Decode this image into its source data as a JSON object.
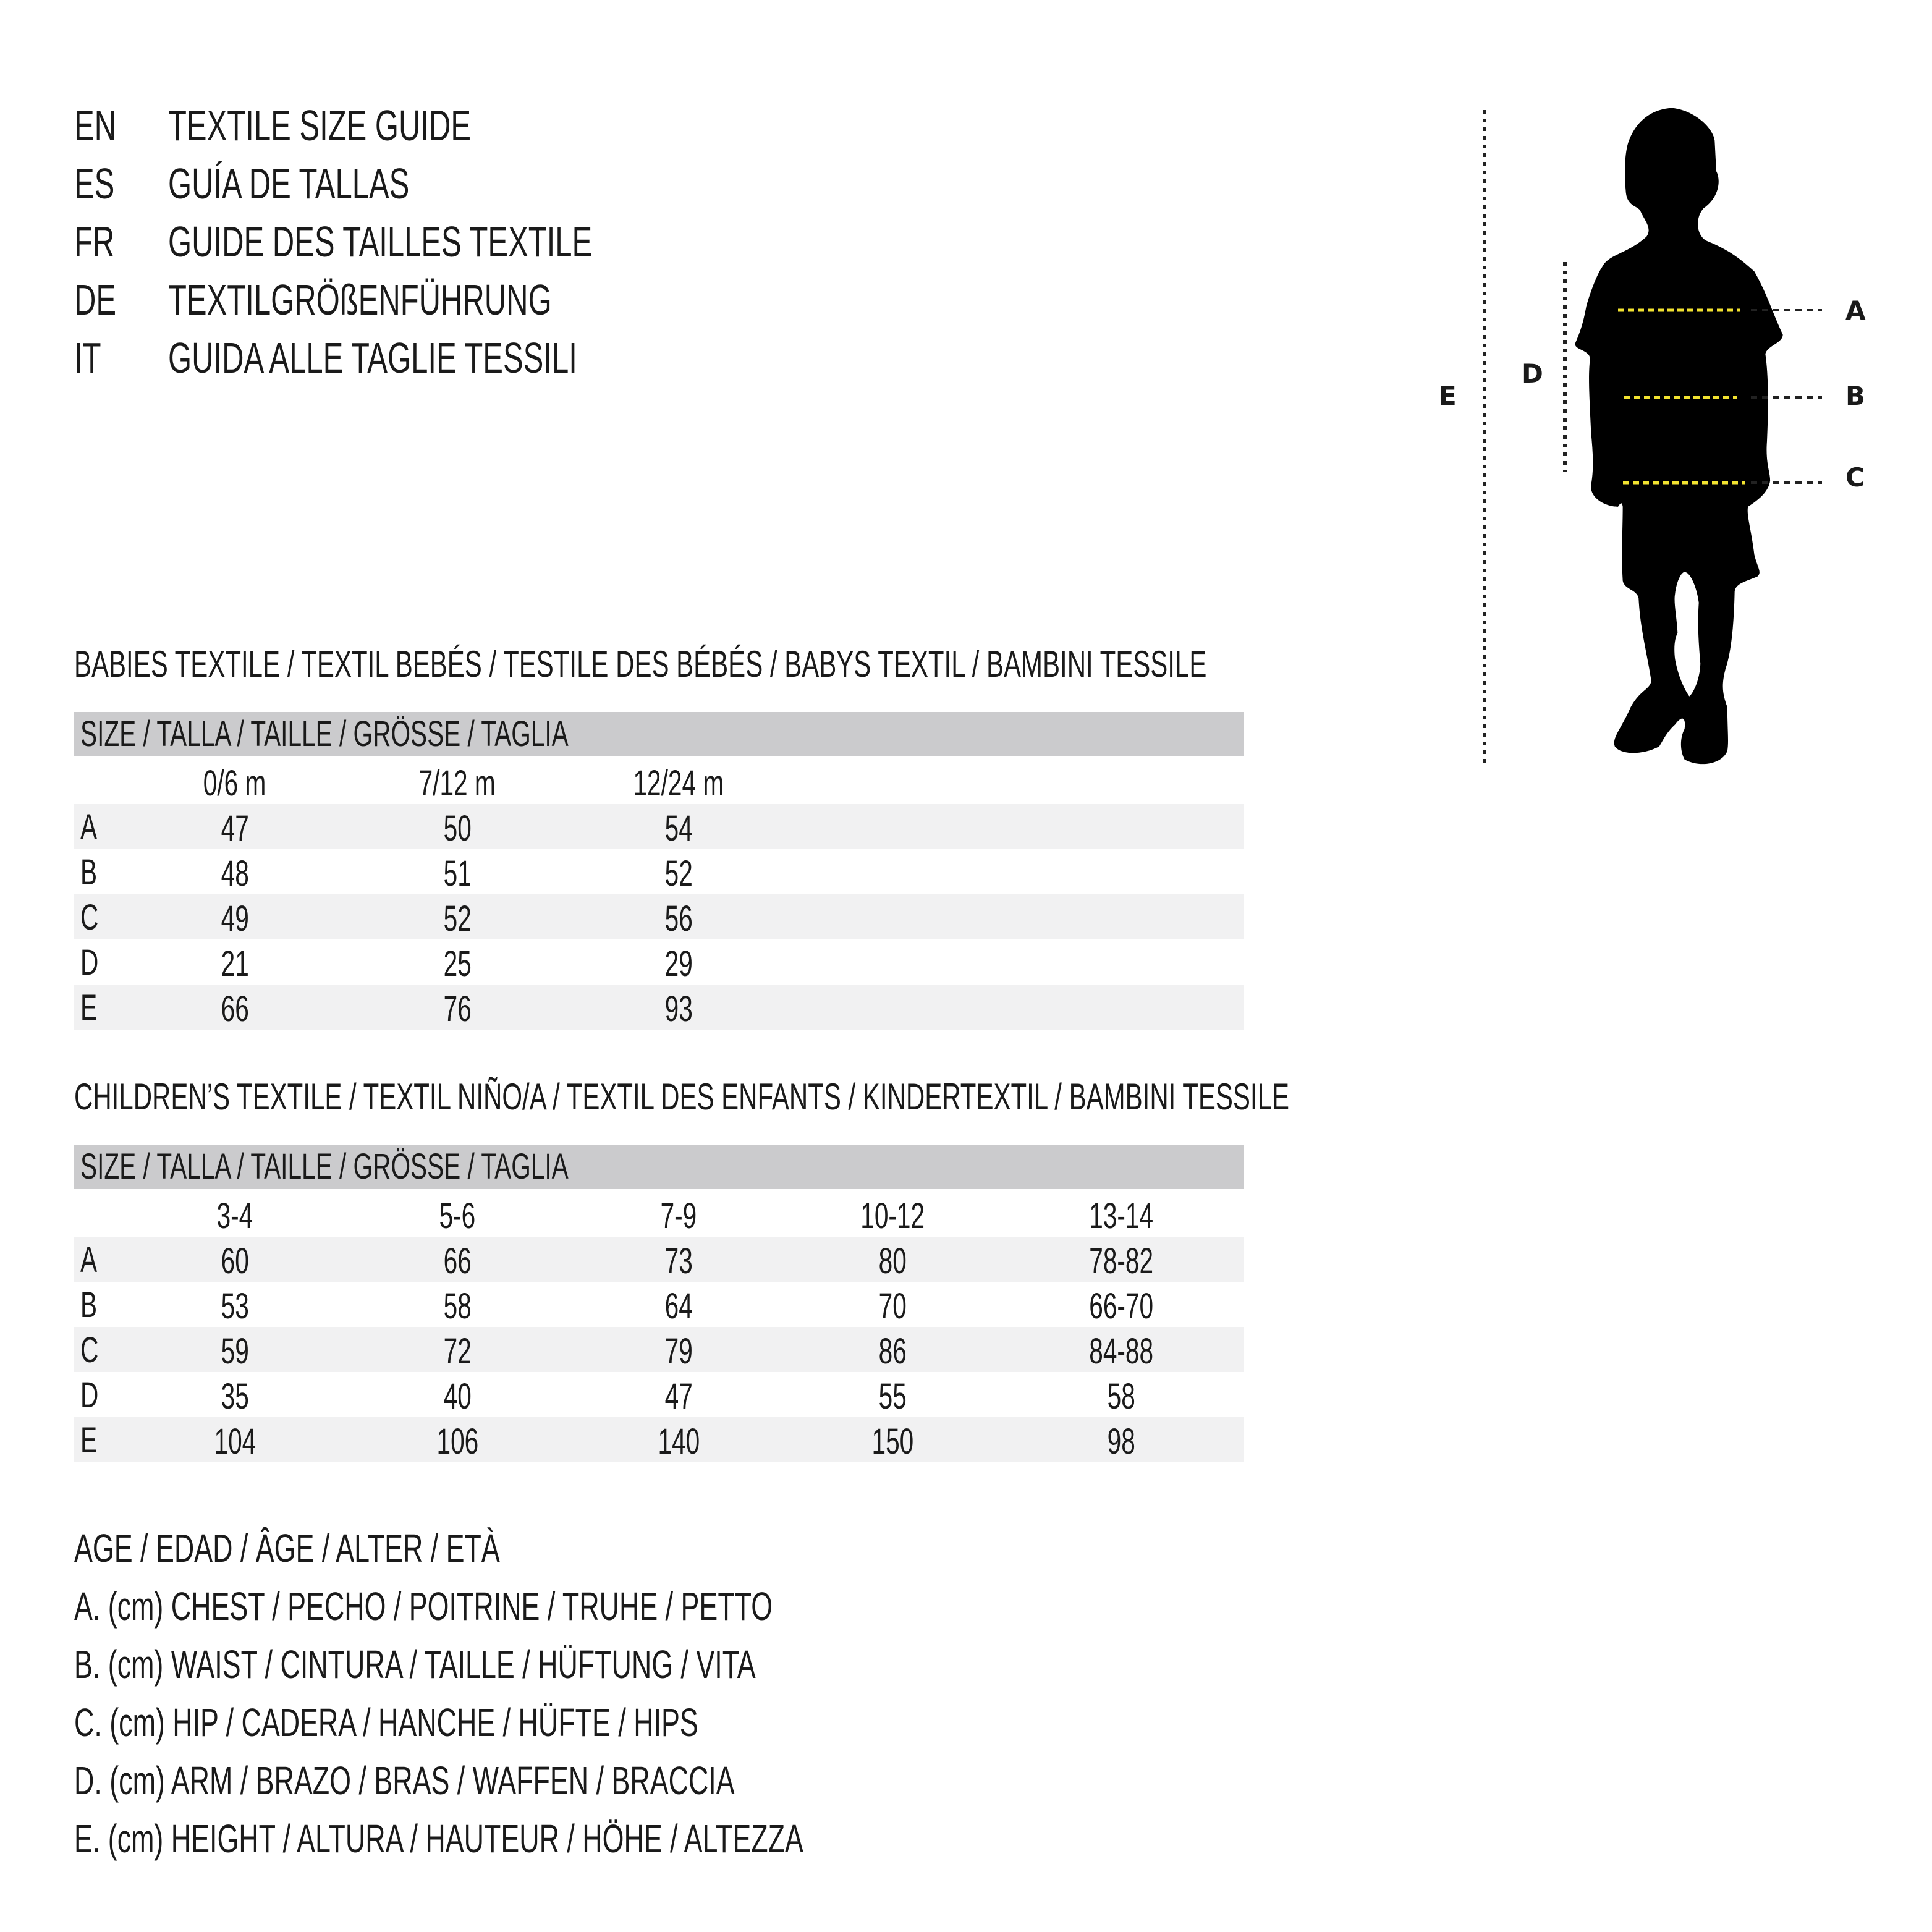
{
  "titles": [
    {
      "code": "EN",
      "text": "TEXTILE SIZE GUIDE"
    },
    {
      "code": "ES",
      "text": "GUÍA DE TALLAS"
    },
    {
      "code": "FR",
      "text": "GUIDE DES TAILLES TEXTILE"
    },
    {
      "code": "DE",
      "text": "TEXTILGRÖßENFÜHRUNG"
    },
    {
      "code": "IT",
      "text": "GUIDA ALLE TAGLIE TESSILI"
    }
  ],
  "babies": {
    "heading": "BABIES TEXTILE / TEXTIL BEBÉS / TESTILE DES BÉBÉS / BABYS TEXTIL / BAMBINI TESSILE",
    "size_header": "SIZE / TALLA / TAILLE / GRÖSSE / TAGLIA",
    "columns": [
      "0/6 m",
      "7/12 m",
      "12/24 m"
    ],
    "rows": [
      {
        "label": "A",
        "values": [
          "47",
          "50",
          "54"
        ]
      },
      {
        "label": "B",
        "values": [
          "48",
          "51",
          "52"
        ]
      },
      {
        "label": "C",
        "values": [
          "49",
          "52",
          "56"
        ]
      },
      {
        "label": "D",
        "values": [
          "21",
          "25",
          "29"
        ]
      },
      {
        "label": "E",
        "values": [
          "66",
          "76",
          "93"
        ]
      }
    ]
  },
  "children": {
    "heading": "CHILDREN’S TEXTILE / TEXTIL NIÑO/A / TEXTIL DES ENFANTS / KINDERTEXTIL / BAMBINI TESSILE",
    "size_header": "SIZE / TALLA / TAILLE / GRÖSSE / TAGLIA",
    "columns": [
      "3-4",
      "5-6",
      "7-9",
      "10-12",
      "13-14"
    ],
    "rows": [
      {
        "label": "A",
        "values": [
          "60",
          "66",
          "73",
          "80",
          "78-82"
        ]
      },
      {
        "label": "B",
        "values": [
          "53",
          "58",
          "64",
          "70",
          "66-70"
        ]
      },
      {
        "label": "C",
        "values": [
          "59",
          "72",
          "79",
          "86",
          "84-88"
        ]
      },
      {
        "label": "D",
        "values": [
          "35",
          "40",
          "47",
          "55",
          "58"
        ]
      },
      {
        "label": "E",
        "values": [
          "104",
          "106",
          "140",
          "150",
          "98"
        ]
      }
    ]
  },
  "legend": [
    "AGE / EDAD / ÂGE / ALTER / ETÀ",
    "A. (cm) CHEST / PECHO / POITRINE / TRUHE / PETTO",
    "B. (cm) WAIST / CINTURA / TAILLE / HÜFTUNG / VITA",
    "C. (cm) HIP / CADERA / HANCHE / HÜFTE / HIPS",
    "D. (cm) ARM / BRAZO / BRAS / WAFFEN / BRACCIA",
    "E. (cm) HEIGHT / ALTURA / HAUTEUR / HÖHE / ALTEZZA"
  ],
  "figure": {
    "marks": {
      "a": "A",
      "b": "B",
      "c": "C",
      "d": "D",
      "e": "E"
    },
    "icon": "child-silhouette-icon",
    "colors": {
      "guide_line": "#f2e230",
      "bar": "#cbcbcd",
      "stripe": "#f1f1f2"
    }
  }
}
